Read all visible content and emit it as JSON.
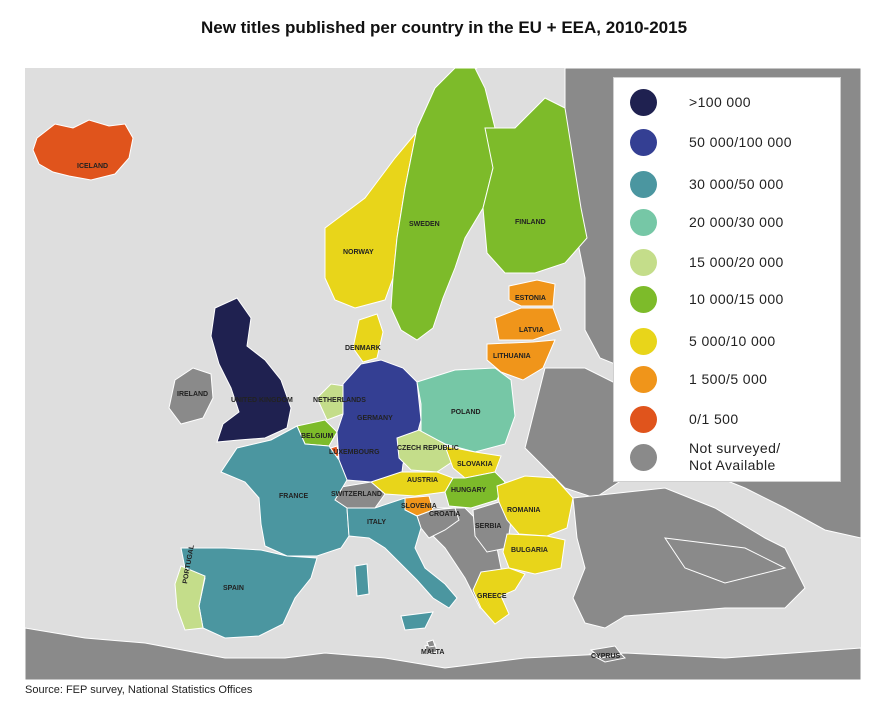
{
  "title": "New titles published per country in the EU + EEA, 2010-2015",
  "source": "Source: FEP survey, National Statistics Offices",
  "colors": {
    "sea": "#dedede",
    "non_eu_land": "#8a8a8a",
    "border": "#ffffff"
  },
  "legend": [
    {
      "label": ">100 000",
      "color": "#1f2150"
    },
    {
      "label": "50 000/100 000",
      "color": "#343f93"
    },
    {
      "label": "30 000/50 000",
      "color": "#4b96a0"
    },
    {
      "label": "20 000/30 000",
      "color": "#76c7a6"
    },
    {
      "label": "15 000/20 000",
      "color": "#c4dd8a"
    },
    {
      "label": "10 000/15 000",
      "color": "#7dbb2a"
    },
    {
      "label": "5 000/10 000",
      "color": "#e8d51a"
    },
    {
      "label": "1 500/5 000",
      "color": "#f0951a"
    },
    {
      "label": "0/1 500",
      "color": "#e0541c"
    },
    {
      "label": "Not surveyed/\nNot Available",
      "color": "#8a8a8a"
    }
  ],
  "countries": [
    {
      "name": "ICELAND",
      "category": "0/1 500"
    },
    {
      "name": "NORWAY",
      "category": "5 000/10 000"
    },
    {
      "name": "SWEDEN",
      "category": "10 000/15 000"
    },
    {
      "name": "FINLAND",
      "category": "10 000/15 000"
    },
    {
      "name": "ESTONIA",
      "category": "1 500/5 000"
    },
    {
      "name": "LATVIA",
      "category": "1 500/5 000"
    },
    {
      "name": "LITHUANIA",
      "category": "1 500/5 000"
    },
    {
      "name": "DENMARK",
      "category": "5 000/10 000"
    },
    {
      "name": "UNITED KINGDOM",
      "category": ">100 000"
    },
    {
      "name": "IRELAND",
      "category": "Not surveyed/Not Available"
    },
    {
      "name": "NETHERLANDS",
      "category": "15 000/20 000"
    },
    {
      "name": "BELGIUM",
      "category": "10 000/15 000"
    },
    {
      "name": "LUXEMBOURG",
      "category": "0/1 500"
    },
    {
      "name": "GERMANY",
      "category": "50 000/100 000"
    },
    {
      "name": "POLAND",
      "category": "20 000/30 000"
    },
    {
      "name": "CZECH REPUBLIC",
      "category": "15 000/20 000"
    },
    {
      "name": "SLOVAKIA",
      "category": "5 000/10 000"
    },
    {
      "name": "AUSTRIA",
      "category": "5 000/10 000"
    },
    {
      "name": "HUNGARY",
      "category": "10 000/15 000"
    },
    {
      "name": "SWITZERLAND",
      "category": "Not surveyed/Not Available"
    },
    {
      "name": "FRANCE",
      "category": "30 000/50 000"
    },
    {
      "name": "SLOVENIA",
      "category": "1 500/5 000"
    },
    {
      "name": "CROATIA",
      "category": "Not surveyed/Not Available"
    },
    {
      "name": "SERBIA",
      "category": "Not surveyed/Not Available"
    },
    {
      "name": "ROMANIA",
      "category": "5 000/10 000"
    },
    {
      "name": "BULGARIA",
      "category": "5 000/10 000"
    },
    {
      "name": "ITALY",
      "category": "30 000/50 000"
    },
    {
      "name": "SPAIN",
      "category": "30 000/50 000"
    },
    {
      "name": "PORTUGAL",
      "category": "15 000/20 000"
    },
    {
      "name": "GREECE",
      "category": "5 000/10 000"
    },
    {
      "name": "MALTA",
      "category": "Not surveyed/Not Available"
    },
    {
      "name": "CYPRUS",
      "category": "Not surveyed/Not Available"
    }
  ]
}
